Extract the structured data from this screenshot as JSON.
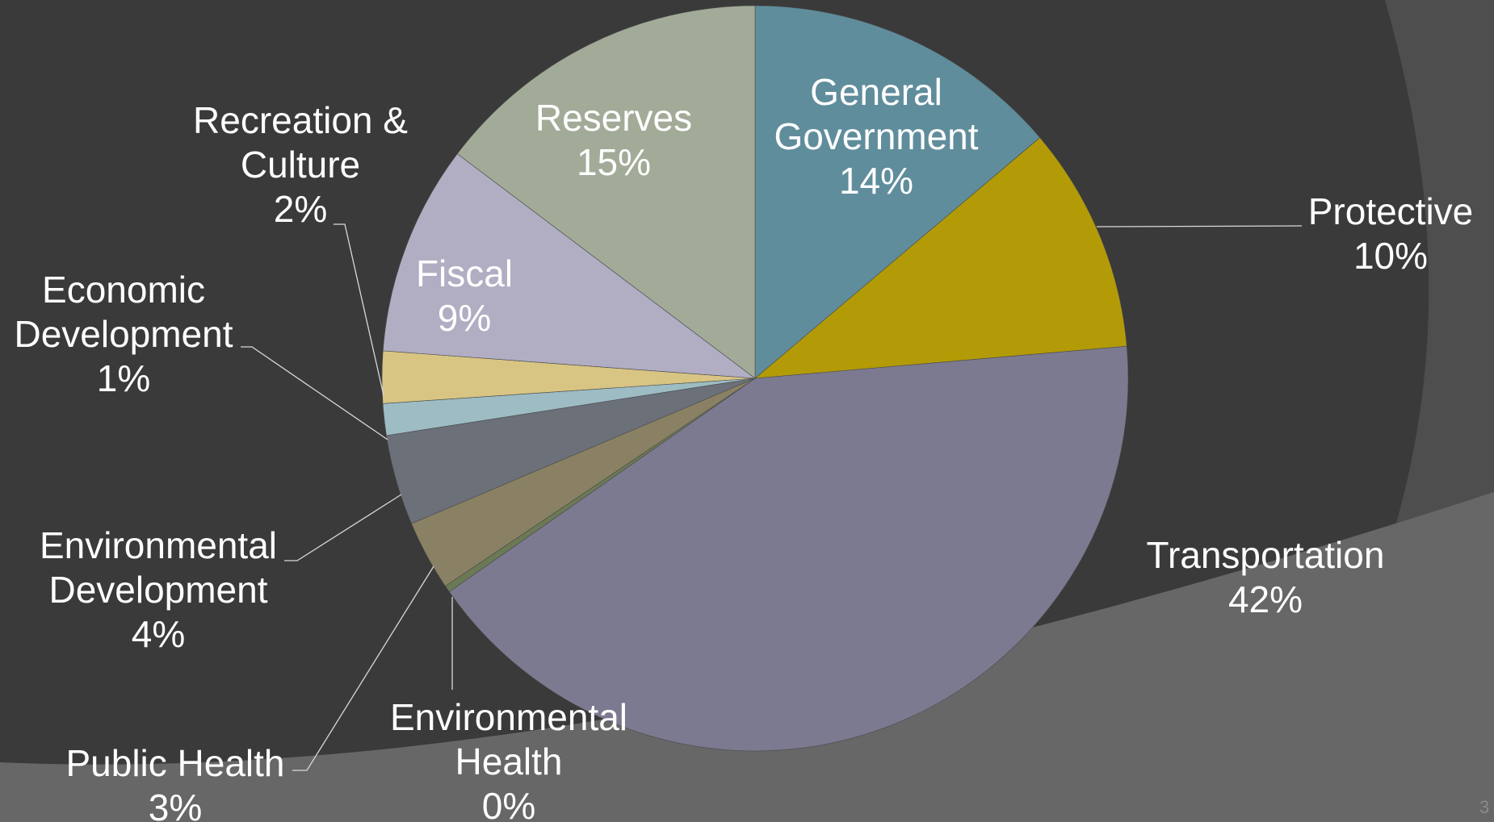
{
  "slide": {
    "page_number": "3"
  },
  "colors": {
    "background": "#3a3a3a",
    "arc_light": "#676767",
    "arc_mid": "#4e4e4e"
  },
  "chart_data": {
    "type": "pie",
    "start_angle_deg": 0,
    "direction": "clockwise",
    "slices": [
      {
        "name": "General Government",
        "label_lines": [
          "General",
          "Government",
          "14%"
        ],
        "value": 14.1,
        "color": "#608d9c"
      },
      {
        "name": "Protective",
        "label_lines": [
          "Protective",
          "10%"
        ],
        "value": 10.0,
        "color": "#b39b08"
      },
      {
        "name": "Transportation",
        "label_lines": [
          "Transportation",
          "42%"
        ],
        "value": 42.5,
        "color": "#7c7a90"
      },
      {
        "name": "Environmental Health",
        "label_lines": [
          "Environmental",
          "Health",
          "0%"
        ],
        "value": 0.3,
        "color": "#6b7a55"
      },
      {
        "name": "Public Health",
        "label_lines": [
          "Public Health",
          "3%"
        ],
        "value": 3.1,
        "color": "#8a8164"
      },
      {
        "name": "Environmental Development",
        "label_lines": [
          "Environmental",
          "Development",
          "4%"
        ],
        "value": 4.0,
        "color": "#6b7079"
      },
      {
        "name": "Economic Development",
        "label_lines": [
          "Economic",
          "Development",
          "1%"
        ],
        "value": 1.4,
        "color": "#9dbcc4"
      },
      {
        "name": "Recreation & Culture",
        "label_lines": [
          "Recreation &",
          "Culture",
          "2%"
        ],
        "value": 2.3,
        "color": "#d8c584"
      },
      {
        "name": "Fiscal",
        "label_lines": [
          "Fiscal",
          "9%"
        ],
        "value": 9.3,
        "color": "#b1adc3"
      },
      {
        "name": "Reserves",
        "label_lines": [
          "Reserves",
          "15%"
        ],
        "value": 15.0,
        "color": "#a2ab98"
      }
    ]
  }
}
